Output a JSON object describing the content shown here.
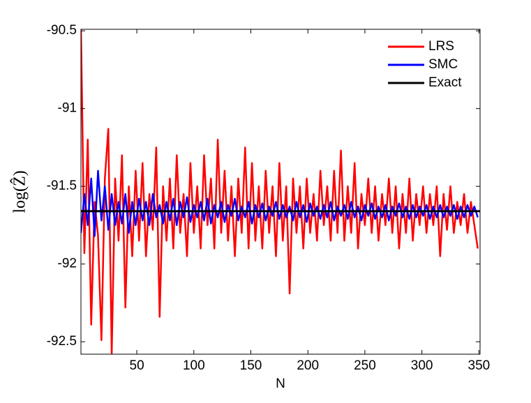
{
  "chart_data": {
    "type": "line",
    "xlabel": "N",
    "ylabel": "log(Ẑ)",
    "xlim": [
      1,
      351
    ],
    "xticks": [
      50,
      100,
      150,
      200,
      250,
      300,
      350
    ],
    "ylim": [
      -92.58,
      -90.49
    ],
    "yticks": [
      -90.5,
      -91,
      -91.5,
      -92,
      -92.5
    ],
    "legend": "top-right",
    "x": [
      1,
      4,
      7,
      10,
      13,
      16,
      19,
      22,
      25,
      28,
      31,
      34,
      37,
      40,
      43,
      46,
      49,
      52,
      55,
      58,
      61,
      64,
      67,
      70,
      73,
      76,
      79,
      82,
      85,
      88,
      91,
      94,
      97,
      100,
      103,
      106,
      109,
      112,
      115,
      118,
      121,
      124,
      127,
      130,
      133,
      136,
      139,
      142,
      145,
      148,
      151,
      154,
      157,
      160,
      163,
      166,
      169,
      172,
      175,
      178,
      181,
      184,
      187,
      190,
      193,
      196,
      199,
      202,
      205,
      208,
      211,
      214,
      217,
      220,
      223,
      226,
      229,
      232,
      235,
      238,
      241,
      244,
      247,
      250,
      253,
      256,
      259,
      262,
      265,
      268,
      271,
      274,
      277,
      280,
      283,
      286,
      289,
      292,
      295,
      298,
      301,
      304,
      307,
      310,
      313,
      316,
      319,
      322,
      325,
      328,
      331,
      334,
      337,
      340,
      343,
      346,
      349
    ],
    "series": [
      {
        "name": "LRS",
        "color": "#ff0000",
        "values": [
          -90.48,
          -91.93,
          -91.2,
          -92.39,
          -91.6,
          -91.82,
          -92.49,
          -91.45,
          -91.13,
          -92.58,
          -91.45,
          -91.85,
          -91.3,
          -92.28,
          -91.5,
          -91.95,
          -91.4,
          -91.85,
          -91.35,
          -91.95,
          -91.55,
          -91.78,
          -91.25,
          -92.34,
          -91.5,
          -91.85,
          -91.45,
          -91.9,
          -91.3,
          -91.8,
          -91.55,
          -91.95,
          -91.35,
          -91.8,
          -91.5,
          -91.9,
          -91.3,
          -91.75,
          -91.45,
          -91.9,
          -91.2,
          -91.8,
          -91.4,
          -91.85,
          -91.5,
          -91.95,
          -91.45,
          -91.8,
          -91.25,
          -91.9,
          -91.35,
          -91.85,
          -91.5,
          -91.9,
          -91.4,
          -91.8,
          -91.5,
          -91.95,
          -91.35,
          -91.85,
          -91.5,
          -92.19,
          -91.45,
          -91.8,
          -91.5,
          -91.9,
          -91.45,
          -91.8,
          -91.55,
          -91.85,
          -91.4,
          -91.75,
          -91.5,
          -91.85,
          -91.4,
          -91.8,
          -91.27,
          -91.85,
          -91.5,
          -91.8,
          -91.35,
          -91.9,
          -91.55,
          -91.75,
          -91.45,
          -91.8,
          -91.5,
          -91.85,
          -91.55,
          -91.75,
          -91.45,
          -91.8,
          -91.5,
          -91.9,
          -91.55,
          -91.8,
          -91.45,
          -91.85,
          -91.55,
          -91.75,
          -91.5,
          -91.8,
          -91.55,
          -91.75,
          -91.5,
          -91.95,
          -91.55,
          -91.78,
          -91.5,
          -91.8,
          -91.6,
          -91.75,
          -91.55,
          -91.8,
          -91.6,
          -91.75,
          -91.9
        ]
      },
      {
        "name": "SMC",
        "color": "#0000ff",
        "values": [
          -91.8,
          -91.55,
          -91.75,
          -91.45,
          -91.82,
          -91.4,
          -91.72,
          -91.5,
          -91.78,
          -91.55,
          -91.75,
          -91.6,
          -91.74,
          -91.55,
          -91.8,
          -91.6,
          -91.75,
          -91.58,
          -91.72,
          -91.6,
          -91.75,
          -91.55,
          -91.7,
          -91.62,
          -91.74,
          -91.6,
          -91.72,
          -91.58,
          -91.75,
          -91.6,
          -91.7,
          -91.57,
          -91.73,
          -91.62,
          -91.7,
          -91.6,
          -91.72,
          -91.58,
          -91.74,
          -91.62,
          -91.7,
          -91.6,
          -91.73,
          -91.62,
          -91.69,
          -91.58,
          -91.72,
          -91.63,
          -91.7,
          -91.6,
          -91.74,
          -91.62,
          -91.7,
          -91.61,
          -91.72,
          -91.63,
          -91.69,
          -91.6,
          -91.71,
          -91.62,
          -91.7,
          -91.63,
          -91.72,
          -91.6,
          -91.7,
          -91.62,
          -91.73,
          -91.61,
          -91.69,
          -91.63,
          -91.71,
          -91.62,
          -91.7,
          -91.6,
          -91.72,
          -91.63,
          -91.69,
          -91.62,
          -91.71,
          -91.6,
          -91.7,
          -91.63,
          -91.72,
          -91.62,
          -91.69,
          -91.61,
          -91.71,
          -91.63,
          -91.7,
          -91.62,
          -91.72,
          -91.63,
          -91.69,
          -91.61,
          -91.7,
          -91.63,
          -91.71,
          -91.62,
          -91.7,
          -91.63,
          -91.69,
          -91.62,
          -91.71,
          -91.63,
          -91.7,
          -91.62,
          -91.7,
          -91.63,
          -91.69,
          -91.62,
          -91.71,
          -91.63,
          -91.7,
          -91.62,
          -91.69,
          -91.63,
          -91.7
        ]
      },
      {
        "name": "Exact",
        "color": "#000000",
        "x": [
          1,
          351
        ],
        "values": [
          -91.66,
          -91.66
        ]
      }
    ]
  }
}
